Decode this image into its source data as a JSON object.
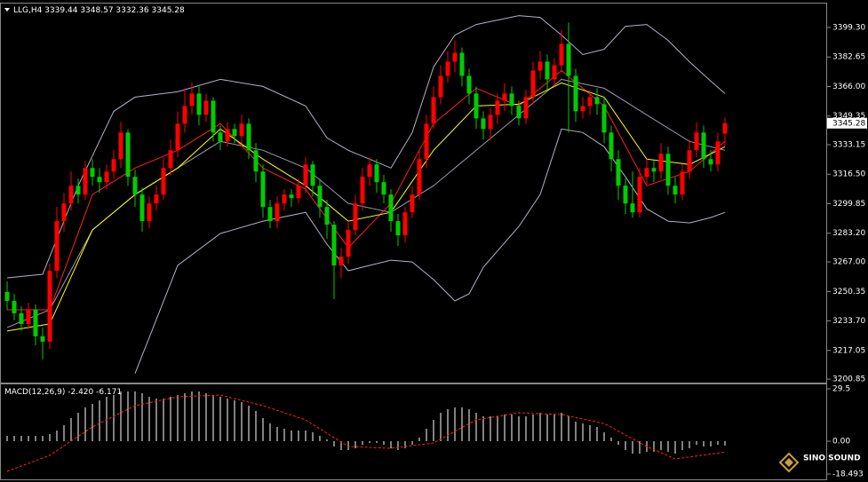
{
  "chart_data": {
    "type": "candlestick",
    "symbol": "LLG,H4",
    "up_color": "#ff0000",
    "down_color": "#00cc00",
    "open": [
      3250,
      3245,
      3238,
      3232,
      3240,
      3225,
      3222,
      3262,
      3290,
      3300,
      3310,
      3305,
      3320,
      3315,
      3312,
      3318,
      3325,
      3340,
      3315,
      3305,
      3290,
      3300,
      3305,
      3320,
      3330,
      3345,
      3355,
      3362,
      3350,
      3358,
      3340,
      3335,
      3342,
      3338,
      3345,
      3330,
      3318,
      3298,
      3290,
      3300,
      3305,
      3303,
      3310,
      3322,
      3310,
      3298,
      3288,
      3265,
      3270,
      3285,
      3300,
      3315,
      3322,
      3312,
      3305,
      3290,
      3282,
      3295,
      3305,
      3325,
      3345,
      3360,
      3372,
      3380,
      3385,
      3372,
      3362,
      3348,
      3342,
      3350,
      3358,
      3362,
      3355,
      3348,
      3360,
      3375,
      3380,
      3370,
      3378,
      3390,
      3372,
      3352,
      3355,
      3360,
      3356,
      3340,
      3325,
      3310,
      3300,
      3295,
      3315,
      3320,
      3318,
      3328,
      3310,
      3305,
      3318,
      3330,
      3340,
      3325,
      3322,
      3339.44
    ],
    "high": [
      3256,
      3249,
      3242,
      3244,
      3243,
      3230,
      3266,
      3298,
      3306,
      3318,
      3314,
      3324,
      3325,
      3320,
      3322,
      3330,
      3346,
      3342,
      3319,
      3309,
      3304,
      3310,
      3326,
      3336,
      3352,
      3365,
      3368,
      3366,
      3362,
      3360,
      3344,
      3346,
      3345,
      3350,
      3348,
      3334,
      3322,
      3302,
      3304,
      3308,
      3308,
      3314,
      3326,
      3324,
      3314,
      3302,
      3290,
      3275,
      3290,
      3305,
      3320,
      3326,
      3325,
      3316,
      3308,
      3294,
      3298,
      3310,
      3330,
      3350,
      3366,
      3378,
      3386,
      3392,
      3388,
      3376,
      3366,
      3352,
      3354,
      3362,
      3368,
      3366,
      3358,
      3364,
      3380,
      3386,
      3384,
      3382,
      3398,
      3402,
      3376,
      3360,
      3364,
      3365,
      3360,
      3344,
      3330,
      3314,
      3318,
      3320,
      3325,
      3324,
      3334,
      3332,
      3315,
      3322,
      3336,
      3346,
      3344,
      3330,
      3340,
      3348.57
    ],
    "low": [
      3240,
      3234,
      3228,
      3229,
      3220,
      3212,
      3218,
      3258,
      3284,
      3296,
      3300,
      3302,
      3310,
      3306,
      3308,
      3314,
      3320,
      3310,
      3298,
      3284,
      3286,
      3296,
      3302,
      3316,
      3326,
      3340,
      3350,
      3344,
      3346,
      3335,
      3330,
      3332,
      3334,
      3334,
      3325,
      3312,
      3292,
      3286,
      3286,
      3296,
      3298,
      3300,
      3306,
      3304,
      3292,
      3280,
      3246,
      3258,
      3266,
      3282,
      3296,
      3310,
      3306,
      3300,
      3284,
      3276,
      3278,
      3292,
      3302,
      3320,
      3342,
      3356,
      3368,
      3374,
      3366,
      3356,
      3342,
      3336,
      3336,
      3345,
      3352,
      3350,
      3344,
      3345,
      3356,
      3370,
      3364,
      3366,
      3374,
      3340,
      3346,
      3348,
      3350,
      3350,
      3334,
      3318,
      3302,
      3294,
      3292,
      3292,
      3310,
      3312,
      3314,
      3305,
      3300,
      3302,
      3314,
      3326,
      3320,
      3318,
      3318,
      3332.36
    ],
    "close": [
      3245,
      3238,
      3232,
      3240,
      3225,
      3222,
      3262,
      3290,
      3300,
      3310,
      3305,
      3320,
      3315,
      3312,
      3318,
      3325,
      3340,
      3315,
      3305,
      3290,
      3300,
      3305,
      3320,
      3330,
      3345,
      3355,
      3362,
      3350,
      3358,
      3340,
      3335,
      3342,
      3338,
      3345,
      3330,
      3318,
      3298,
      3290,
      3300,
      3305,
      3303,
      3310,
      3322,
      3310,
      3298,
      3288,
      3265,
      3270,
      3285,
      3300,
      3315,
      3322,
      3312,
      3305,
      3290,
      3282,
      3295,
      3305,
      3325,
      3345,
      3360,
      3372,
      3380,
      3385,
      3372,
      3362,
      3348,
      3342,
      3350,
      3358,
      3362,
      3355,
      3348,
      3360,
      3375,
      3380,
      3370,
      3378,
      3390,
      3372,
      3352,
      3355,
      3360,
      3356,
      3340,
      3325,
      3310,
      3300,
      3295,
      3315,
      3320,
      3318,
      3328,
      3310,
      3305,
      3318,
      3330,
      3340,
      3325,
      3322,
      3335,
      3345.28
    ],
    "lines": [
      {
        "color": "#b0b0c8",
        "x": [
          0,
          5,
          6,
          10,
          15,
          18,
          24,
          30,
          36,
          42,
          45,
          48,
          54,
          57,
          60,
          63,
          66,
          72,
          75,
          78,
          81,
          84,
          87,
          90,
          93,
          96,
          99,
          101
        ],
        "values": [
          3258,
          3260,
          3270,
          3310,
          3352,
          3360,
          3363,
          3370,
          3366,
          3355,
          3337,
          3330,
          3320,
          3340,
          3377,
          3395,
          3401,
          3406,
          3405,
          3395,
          3384,
          3387,
          3400,
          3401,
          3392,
          3380,
          3369,
          3362
        ]
      },
      {
        "color": "#b0b0c8",
        "x": [
          18,
          24,
          30,
          36,
          42,
          45,
          48,
          51,
          54,
          57,
          60,
          63,
          65,
          67,
          72,
          75,
          78,
          81,
          84,
          87,
          90,
          93,
          96,
          99,
          101
        ],
        "values": [
          3204,
          3265,
          3283,
          3290,
          3295,
          3277,
          3262,
          3265,
          3268,
          3267,
          3257,
          3245,
          3249,
          3264,
          3287,
          3305,
          3342,
          3340,
          3332,
          3315,
          3297,
          3290,
          3289,
          3292,
          3295
        ]
      },
      {
        "color": "#9a9ab0",
        "x": [
          0,
          6,
          12,
          18,
          24,
          30,
          36,
          42,
          48,
          54,
          60,
          66,
          72,
          78,
          84,
          90,
          96,
          101
        ],
        "values": [
          3230,
          3240,
          3285,
          3305,
          3320,
          3335,
          3330,
          3320,
          3300,
          3295,
          3310,
          3330,
          3350,
          3370,
          3365,
          3350,
          3335,
          3330
        ]
      },
      {
        "color": "#ff2020",
        "x": [
          0,
          6,
          12,
          18,
          24,
          30,
          36,
          42,
          48,
          54,
          60,
          66,
          72,
          78,
          84,
          90,
          96,
          101
        ],
        "values": [
          3240,
          3240,
          3305,
          3320,
          3330,
          3345,
          3320,
          3308,
          3275,
          3300,
          3345,
          3365,
          3355,
          3375,
          3355,
          3310,
          3318,
          3335
        ]
      },
      {
        "color": "#ffff00",
        "x": [
          0,
          6,
          12,
          18,
          24,
          30,
          36,
          42,
          48,
          54,
          60,
          66,
          72,
          78,
          84,
          90,
          96,
          101
        ],
        "values": [
          3228,
          3232,
          3285,
          3305,
          3320,
          3342,
          3325,
          3310,
          3290,
          3295,
          3330,
          3355,
          3356,
          3368,
          3360,
          3325,
          3322,
          3332
        ]
      }
    ],
    "ylim": [
      3199.4,
      3412.3
    ],
    "yticks": [
      {
        "value": 3399.3,
        "label": "3399.30"
      },
      3382.65,
      {
        "value": 3366,
        "label": "3366.00"
      },
      {
        "value": 3349.35,
        "label": "3349.35"
      },
      3333.15,
      {
        "value": 3316.5,
        "label": "3316.50"
      },
      3299.85,
      {
        "value": 3283.2,
        "label": "3283.20"
      },
      {
        "value": 3267,
        "label": "3267.00"
      },
      3250.35,
      {
        "value": 3233.7,
        "label": "3233.70"
      },
      3217.05,
      3200.85
    ],
    "macd": {
      "label": "MACD(12,26,9)",
      "histogram_color": "#ffffff",
      "signal_color": "#ff2020",
      "histogram": [
        3,
        3,
        3,
        3,
        3,
        3,
        4,
        6,
        9,
        13,
        16,
        19,
        21,
        23,
        25,
        26,
        28,
        28,
        28,
        27,
        25,
        24,
        24,
        25,
        26,
        27,
        28,
        28,
        27,
        26,
        25,
        24,
        23,
        22,
        20,
        17,
        13,
        10,
        8,
        7,
        6,
        6,
        6,
        5,
        3,
        1,
        -3,
        -5,
        -5,
        -4,
        -2,
        -1,
        -1,
        -2,
        -4,
        -5,
        -4,
        -2,
        2,
        7,
        12,
        16,
        18,
        19,
        19,
        18,
        16,
        14,
        14,
        14,
        15,
        15,
        14,
        14,
        15,
        16,
        15,
        15,
        16,
        14,
        11,
        10,
        9,
        8,
        5,
        2,
        -2,
        -5,
        -7,
        -7,
        -6,
        -6,
        -5,
        -6,
        -7,
        -5,
        -4,
        -2,
        -3,
        -3,
        -2,
        -2.42
      ],
      "value_labels": [
        null,
        null,
        null,
        null,
        null,
        null,
        null,
        null,
        null,
        null,
        null,
        null,
        null,
        null,
        null,
        null,
        null,
        null,
        null,
        null,
        null,
        null,
        null,
        null,
        null,
        null,
        null,
        null,
        null,
        null,
        null,
        null,
        null,
        null,
        null,
        null,
        null,
        null,
        null,
        null,
        null,
        null,
        null,
        null,
        null,
        null,
        null,
        null,
        null,
        null,
        null,
        null,
        null,
        null,
        null,
        null,
        null,
        null,
        null,
        null,
        null,
        null,
        null,
        null,
        null,
        null,
        null,
        null,
        null,
        null,
        null,
        null,
        null,
        null,
        null,
        null,
        null,
        null,
        null,
        null,
        null,
        null,
        null,
        null,
        null,
        null,
        null,
        null,
        null,
        null,
        null,
        null,
        null,
        null,
        null,
        null,
        null,
        null,
        null,
        null,
        null,
        "-2.420"
      ],
      "signal_x": [
        0,
        6,
        12,
        18,
        24,
        30,
        36,
        42,
        48,
        54,
        60,
        66,
        72,
        78,
        84,
        90,
        94,
        101
      ],
      "signal": [
        -17,
        -8,
        8,
        20,
        25,
        26,
        20,
        12,
        -3,
        -4,
        -1,
        12,
        16,
        15,
        10,
        -3,
        -10,
        -6.171
      ],
      "ylim": [
        -21.5,
        32
      ],
      "yticks": [
        29.5,
        {
          "value": 0,
          "label": "0.00"
        },
        -18.493
      ]
    },
    "logo": "SINO SOUND"
  }
}
